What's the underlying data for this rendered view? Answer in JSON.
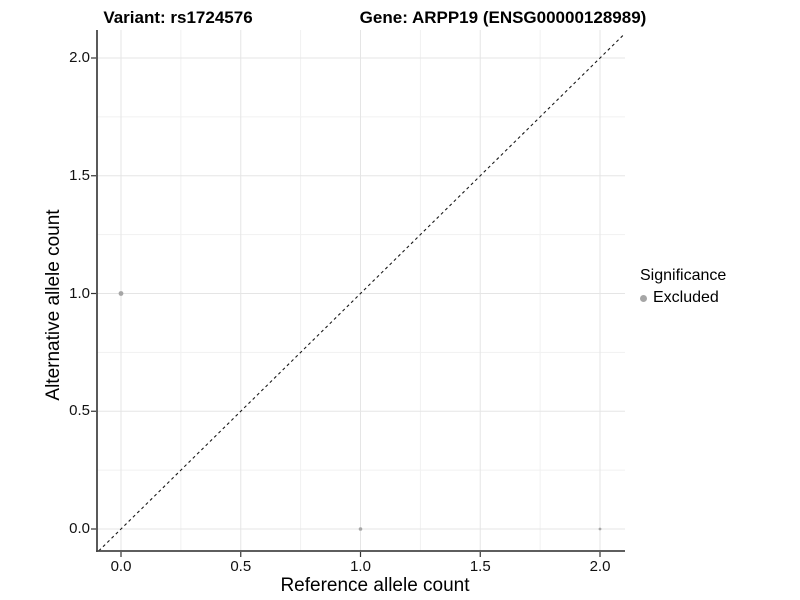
{
  "header": {
    "variant_title": "Variant: rs1724576",
    "gene_title": "Gene: ARPP19 (ENSG00000128989)"
  },
  "chart_data": {
    "type": "scatter",
    "title_left": "Variant: rs1724576",
    "title_right": "Gene: ARPP19 (ENSG00000128989)",
    "xlabel": "Reference allele count",
    "ylabel": "Alternative allele count",
    "xlim": [
      -0.1,
      2.1
    ],
    "ylim": [
      -0.1,
      2.1
    ],
    "x_ticks": [
      0,
      0.5,
      1,
      1.5,
      2
    ],
    "x_tick_labels": [
      "0.0",
      "0.5",
      "1.0",
      "1.5",
      "2.0"
    ],
    "y_ticks": [
      0,
      0.5,
      1,
      1.5,
      2
    ],
    "y_tick_labels": [
      "0.0",
      "0.5",
      "1.0",
      "1.5",
      "2.0"
    ],
    "minor_ticks": [
      0.25,
      0.75,
      1.25,
      1.75
    ],
    "grid": "major-and-minor",
    "points": [
      {
        "x": 0,
        "y": 1,
        "r": 2.4
      },
      {
        "x": 1,
        "y": 0,
        "r": 1.8
      },
      {
        "x": 2,
        "y": 0,
        "r": 1.4
      }
    ],
    "reference_line": {
      "style": "dashed",
      "equation": "y = x",
      "x1": -0.093,
      "y1": -0.093,
      "x2": 2.104,
      "y2": 2.104
    },
    "legend": {
      "position": "right",
      "title": "Significance",
      "entries": [
        {
          "label": "Excluded",
          "color": "#a6a6a6"
        }
      ]
    }
  },
  "colors": {
    "point": "#a6a6a6",
    "grid_major": "#e5e5e5",
    "grid_minor": "#f1f1f1",
    "axis_line": "#474747",
    "tick_mark": "#333333",
    "reference_line": "#1a1a1a"
  }
}
